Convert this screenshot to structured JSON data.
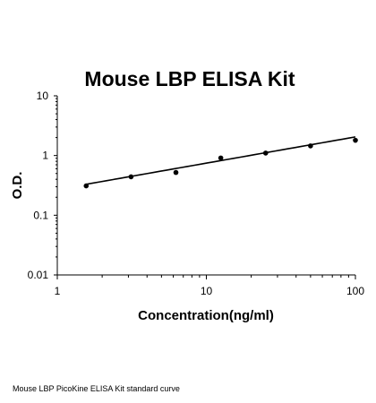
{
  "chart_data": {
    "type": "scatter",
    "title": "Mouse LBP ELISA Kit",
    "xlabel": "Concentration(ng/ml)",
    "ylabel": "O.D.",
    "x_scale": "log",
    "y_scale": "log",
    "xlim": [
      1,
      100
    ],
    "ylim": [
      0.01,
      10
    ],
    "x_ticks": [
      "1",
      "10",
      "100"
    ],
    "y_ticks": [
      "0.01",
      "0.1",
      "1",
      "10"
    ],
    "grid": false,
    "legend": "none",
    "series": [
      {
        "x": [
          1.5625,
          3.125,
          6.25,
          12.5,
          25,
          50,
          100
        ],
        "y": [
          0.31,
          0.44,
          0.52,
          0.91,
          1.1,
          1.45,
          1.8
        ]
      }
    ],
    "fit_line": {
      "x": [
        1.5625,
        100
      ],
      "y": [
        0.33,
        2.05
      ]
    }
  },
  "caption": "Mouse LBP PicoKine ELISA Kit standard curve",
  "colors": {
    "marks": "#000000",
    "background": "#ffffff"
  }
}
